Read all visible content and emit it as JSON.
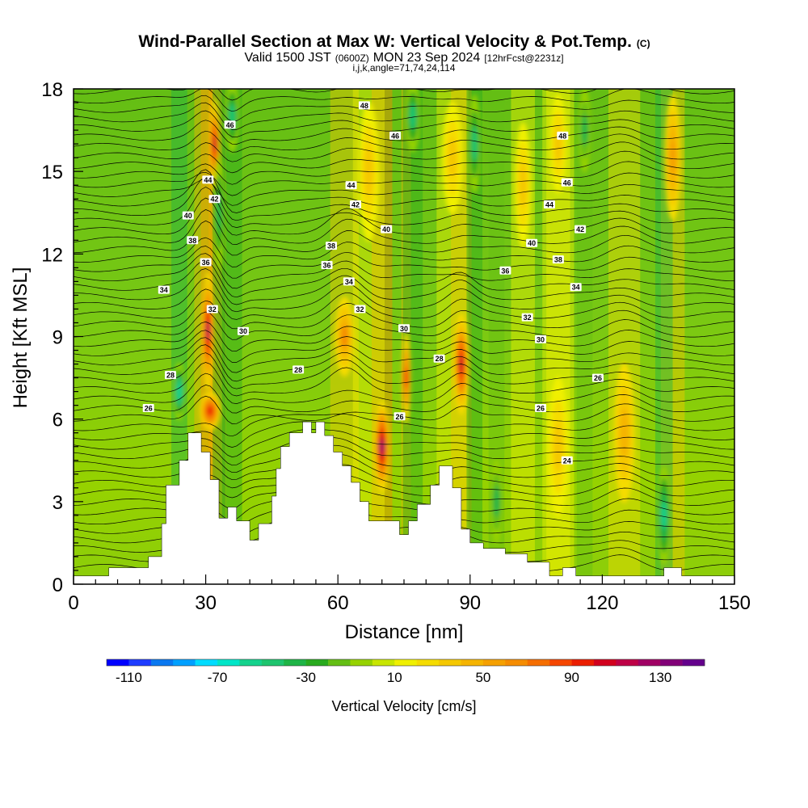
{
  "chart_data": {
    "type": "heatmap",
    "title": "Wind-Parallel Section at Max W: Vertical Velocity & Pot.Temp.",
    "title_tag": "(C)",
    "subtitle_prefix": "Valid 1500 JST",
    "subtitle_zulu": "(0600Z)",
    "subtitle_date": "MON 23 Sep 2024",
    "subtitle_fcst": "[12hrFcst@2231z]",
    "subtitle2": "i,j,k,angle=71,74,24,114",
    "xlabel": "Distance [nm]",
    "ylabel": "Height [Kft MSL]",
    "xlim": [
      0,
      150
    ],
    "ylim": [
      0,
      18
    ],
    "x_ticks": [
      "0",
      "30",
      "60",
      "90",
      "120",
      "150"
    ],
    "y_ticks": [
      "0",
      "3",
      "6",
      "9",
      "12",
      "15",
      "18"
    ],
    "colorbar": {
      "label": "Vertical Velocity [cm/s]",
      "range": [
        -120,
        150
      ],
      "step": 10,
      "tick_labels": [
        "-110",
        "-70",
        "-30",
        "10",
        "50",
        "90",
        "130"
      ],
      "tick_values": [
        -110,
        -70,
        -30,
        10,
        50,
        90,
        130
      ],
      "colors": [
        "#0000ff",
        "#1e3cff",
        "#0a78f0",
        "#00a0ff",
        "#00dcff",
        "#00e6c8",
        "#14d28c",
        "#1ec46e",
        "#1eb446",
        "#28aa1e",
        "#64be14",
        "#96d200",
        "#c8e600",
        "#f0f000",
        "#f5dc00",
        "#f5c800",
        "#f5b400",
        "#f5a000",
        "#f58c00",
        "#f56e00",
        "#f54600",
        "#eb1e00",
        "#d2001e",
        "#be0046",
        "#a00064",
        "#820078",
        "#64008c"
      ]
    },
    "terrain": [
      [
        0,
        0.3
      ],
      [
        8,
        0.3
      ],
      [
        8,
        0.6
      ],
      [
        17,
        0.6
      ],
      [
        17,
        1.0
      ],
      [
        20,
        1.0
      ],
      [
        20,
        2.2
      ],
      [
        21,
        2.2
      ],
      [
        21,
        3.6
      ],
      [
        24,
        3.6
      ],
      [
        24,
        4.5
      ],
      [
        26,
        4.5
      ],
      [
        26,
        5.5
      ],
      [
        29,
        5.5
      ],
      [
        29,
        4.8
      ],
      [
        31,
        4.8
      ],
      [
        31,
        3.8
      ],
      [
        33,
        3.8
      ],
      [
        33,
        2.4
      ],
      [
        35,
        2.4
      ],
      [
        35,
        2.8
      ],
      [
        37,
        2.8
      ],
      [
        37,
        2.3
      ],
      [
        40,
        2.3
      ],
      [
        40,
        1.6
      ],
      [
        42,
        1.6
      ],
      [
        42,
        2.2
      ],
      [
        45,
        2.2
      ],
      [
        45,
        3.2
      ],
      [
        46,
        3.2
      ],
      [
        46,
        4.2
      ],
      [
        47,
        4.2
      ],
      [
        47,
        5.0
      ],
      [
        49,
        5.0
      ],
      [
        49,
        5.5
      ],
      [
        52,
        5.5
      ],
      [
        52,
        5.9
      ],
      [
        54,
        5.9
      ],
      [
        54,
        5.5
      ],
      [
        55,
        5.5
      ],
      [
        55,
        5.9
      ],
      [
        57,
        5.9
      ],
      [
        57,
        5.4
      ],
      [
        59,
        5.4
      ],
      [
        59,
        4.8
      ],
      [
        61,
        4.8
      ],
      [
        61,
        4.3
      ],
      [
        63,
        4.3
      ],
      [
        63,
        3.7
      ],
      [
        65,
        3.7
      ],
      [
        65,
        3.0
      ],
      [
        67,
        3.0
      ],
      [
        67,
        2.3
      ],
      [
        74,
        2.3
      ],
      [
        74,
        1.8
      ],
      [
        76,
        1.8
      ],
      [
        76,
        2.3
      ],
      [
        78,
        2.3
      ],
      [
        78,
        2.9
      ],
      [
        81,
        2.9
      ],
      [
        81,
        3.6
      ],
      [
        83,
        3.6
      ],
      [
        83,
        4.3
      ],
      [
        86,
        4.3
      ],
      [
        86,
        3.5
      ],
      [
        88,
        3.5
      ],
      [
        88,
        2.0
      ],
      [
        90,
        2.0
      ],
      [
        90,
        1.5
      ],
      [
        93,
        1.5
      ],
      [
        93,
        1.3
      ],
      [
        98,
        1.3
      ],
      [
        98,
        1.1
      ],
      [
        103,
        1.1
      ],
      [
        103,
        0.8
      ],
      [
        108,
        0.8
      ],
      [
        108,
        0.3
      ],
      [
        111,
        0.3
      ],
      [
        111,
        0.6
      ],
      [
        114,
        0.6
      ],
      [
        114,
        0.3
      ],
      [
        134,
        0.3
      ],
      [
        134,
        0.6
      ],
      [
        138,
        0.6
      ],
      [
        138,
        0.3
      ],
      [
        150,
        0.3
      ]
    ],
    "updrafts": [
      {
        "x": 30.5,
        "y": 9.2,
        "w": 1.8,
        "h": 4.2,
        "value": 110
      },
      {
        "x": 32.0,
        "y": 16.0,
        "w": 1.5,
        "h": 3.2,
        "value": 100
      },
      {
        "x": 31.0,
        "y": 6.3,
        "w": 4.0,
        "h": 1.3,
        "value": 90
      },
      {
        "x": 70.0,
        "y": 5.0,
        "w": 2.6,
        "h": 3.2,
        "value": 120
      },
      {
        "x": 88.0,
        "y": 8.0,
        "w": 2.6,
        "h": 3.6,
        "value": 100
      },
      {
        "x": 61.5,
        "y": 9.0,
        "w": 3.6,
        "h": 2.8,
        "value": 60
      },
      {
        "x": 75.5,
        "y": 7.5,
        "w": 1.2,
        "h": 3.2,
        "value": 80
      },
      {
        "x": 136.0,
        "y": 15.5,
        "w": 3.0,
        "h": 4.5,
        "value": 55
      },
      {
        "x": 125.0,
        "y": 5.5,
        "w": 4.0,
        "h": 5.0,
        "value": 40
      },
      {
        "x": 110.0,
        "y": 5.0,
        "w": 4.0,
        "h": 5.0,
        "value": 30
      },
      {
        "x": 102.0,
        "y": 14.5,
        "w": 3.0,
        "h": 4.5,
        "value": 35
      },
      {
        "x": 86.0,
        "y": 15.5,
        "w": 4.0,
        "h": 4.0,
        "value": 35
      },
      {
        "x": 67.0,
        "y": 15.0,
        "w": 4.0,
        "h": 5.0,
        "value": 30
      },
      {
        "x": 110.0,
        "y": 16.0,
        "w": 3.0,
        "h": 3.5,
        "value": 35
      }
    ],
    "downdrafts": [
      {
        "x": 36.0,
        "y": 17.0,
        "w": 2.5,
        "h": 2.5,
        "value": -50
      },
      {
        "x": 33.0,
        "y": 13.5,
        "w": 1.6,
        "h": 4.0,
        "value": -40
      },
      {
        "x": 24.0,
        "y": 7.0,
        "w": 2.0,
        "h": 2.0,
        "value": -60
      },
      {
        "x": 77.0,
        "y": 17.0,
        "w": 2.5,
        "h": 2.5,
        "value": -50
      },
      {
        "x": 91.0,
        "y": 16.0,
        "w": 2.0,
        "h": 3.5,
        "value": -45
      },
      {
        "x": 134.0,
        "y": 2.5,
        "w": 2.2,
        "h": 3.5,
        "value": -55
      },
      {
        "x": 96.0,
        "y": 3.0,
        "w": 2.0,
        "h": 3.0,
        "value": -35
      },
      {
        "x": 116.0,
        "y": 16.5,
        "w": 2.0,
        "h": 3.0,
        "value": -35
      }
    ],
    "theta_labels": [
      {
        "text": "48",
        "x": 66.0,
        "y": 17.4
      },
      {
        "text": "46",
        "x": 73.0,
        "y": 16.3
      },
      {
        "text": "48",
        "x": 111.0,
        "y": 16.3
      },
      {
        "text": "46",
        "x": 35.5,
        "y": 16.7
      },
      {
        "text": "44",
        "x": 30.5,
        "y": 14.7
      },
      {
        "text": "44",
        "x": 63.0,
        "y": 14.5
      },
      {
        "text": "46",
        "x": 112.0,
        "y": 14.6
      },
      {
        "text": "42",
        "x": 32.0,
        "y": 14.0
      },
      {
        "text": "42",
        "x": 64.0,
        "y": 13.8
      },
      {
        "text": "44",
        "x": 108.0,
        "y": 13.8
      },
      {
        "text": "40",
        "x": 26.0,
        "y": 13.4
      },
      {
        "text": "40",
        "x": 71.0,
        "y": 12.9
      },
      {
        "text": "42",
        "x": 115.0,
        "y": 12.9
      },
      {
        "text": "38",
        "x": 27.0,
        "y": 12.5
      },
      {
        "text": "38",
        "x": 58.5,
        "y": 12.3
      },
      {
        "text": "40",
        "x": 104.0,
        "y": 12.4
      },
      {
        "text": "36",
        "x": 30.0,
        "y": 11.7
      },
      {
        "text": "36",
        "x": 57.5,
        "y": 11.6
      },
      {
        "text": "38",
        "x": 110.0,
        "y": 11.8
      },
      {
        "text": "36",
        "x": 98.0,
        "y": 11.4
      },
      {
        "text": "34",
        "x": 20.5,
        "y": 10.7
      },
      {
        "text": "34",
        "x": 62.5,
        "y": 11.0
      },
      {
        "text": "34",
        "x": 114.0,
        "y": 10.8
      },
      {
        "text": "32",
        "x": 31.5,
        "y": 10.0
      },
      {
        "text": "32",
        "x": 65.0,
        "y": 10.0
      },
      {
        "text": "32",
        "x": 103.0,
        "y": 9.7
      },
      {
        "text": "30",
        "x": 38.5,
        "y": 9.2
      },
      {
        "text": "30",
        "x": 75.0,
        "y": 9.3
      },
      {
        "text": "30",
        "x": 106.0,
        "y": 8.9
      },
      {
        "text": "28",
        "x": 51.0,
        "y": 7.8
      },
      {
        "text": "28",
        "x": 83.0,
        "y": 8.2
      },
      {
        "text": "28",
        "x": 22.0,
        "y": 7.6
      },
      {
        "text": "26",
        "x": 17.0,
        "y": 6.4
      },
      {
        "text": "26",
        "x": 74.0,
        "y": 6.1
      },
      {
        "text": "26",
        "x": 106.0,
        "y": 6.4
      },
      {
        "text": "26",
        "x": 119.0,
        "y": 7.5
      },
      {
        "text": "24",
        "x": 112.0,
        "y": 4.5
      }
    ]
  }
}
